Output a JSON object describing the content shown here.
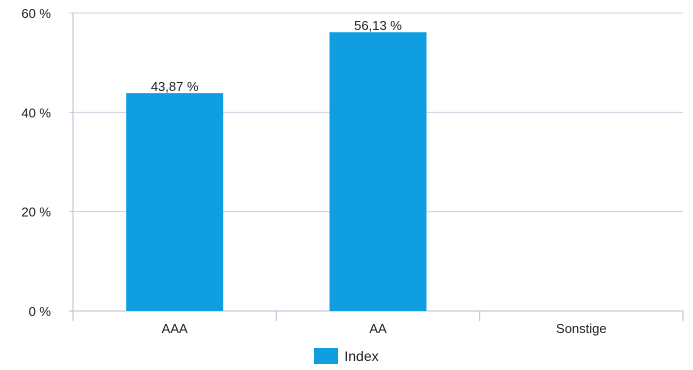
{
  "chart_data": {
    "type": "bar",
    "categories": [
      "AAA",
      "AA",
      "Sonstige"
    ],
    "series": [
      {
        "name": "Index",
        "values": [
          43.87,
          56.13,
          0
        ],
        "labels": [
          "43,87 %",
          "56,13 %",
          ""
        ]
      }
    ],
    "y_ticks": [
      {
        "value": 0,
        "label": "0 %"
      },
      {
        "value": 20,
        "label": "20 %"
      },
      {
        "value": 40,
        "label": "40 %"
      },
      {
        "value": 60,
        "label": "60 %"
      }
    ],
    "ylim": [
      0,
      60
    ],
    "grid": true,
    "legend": "bottom-center",
    "colors": {
      "bar": "#0f9fe0",
      "grid": "#c9d3e0",
      "axis": "#b5c2d2"
    }
  }
}
